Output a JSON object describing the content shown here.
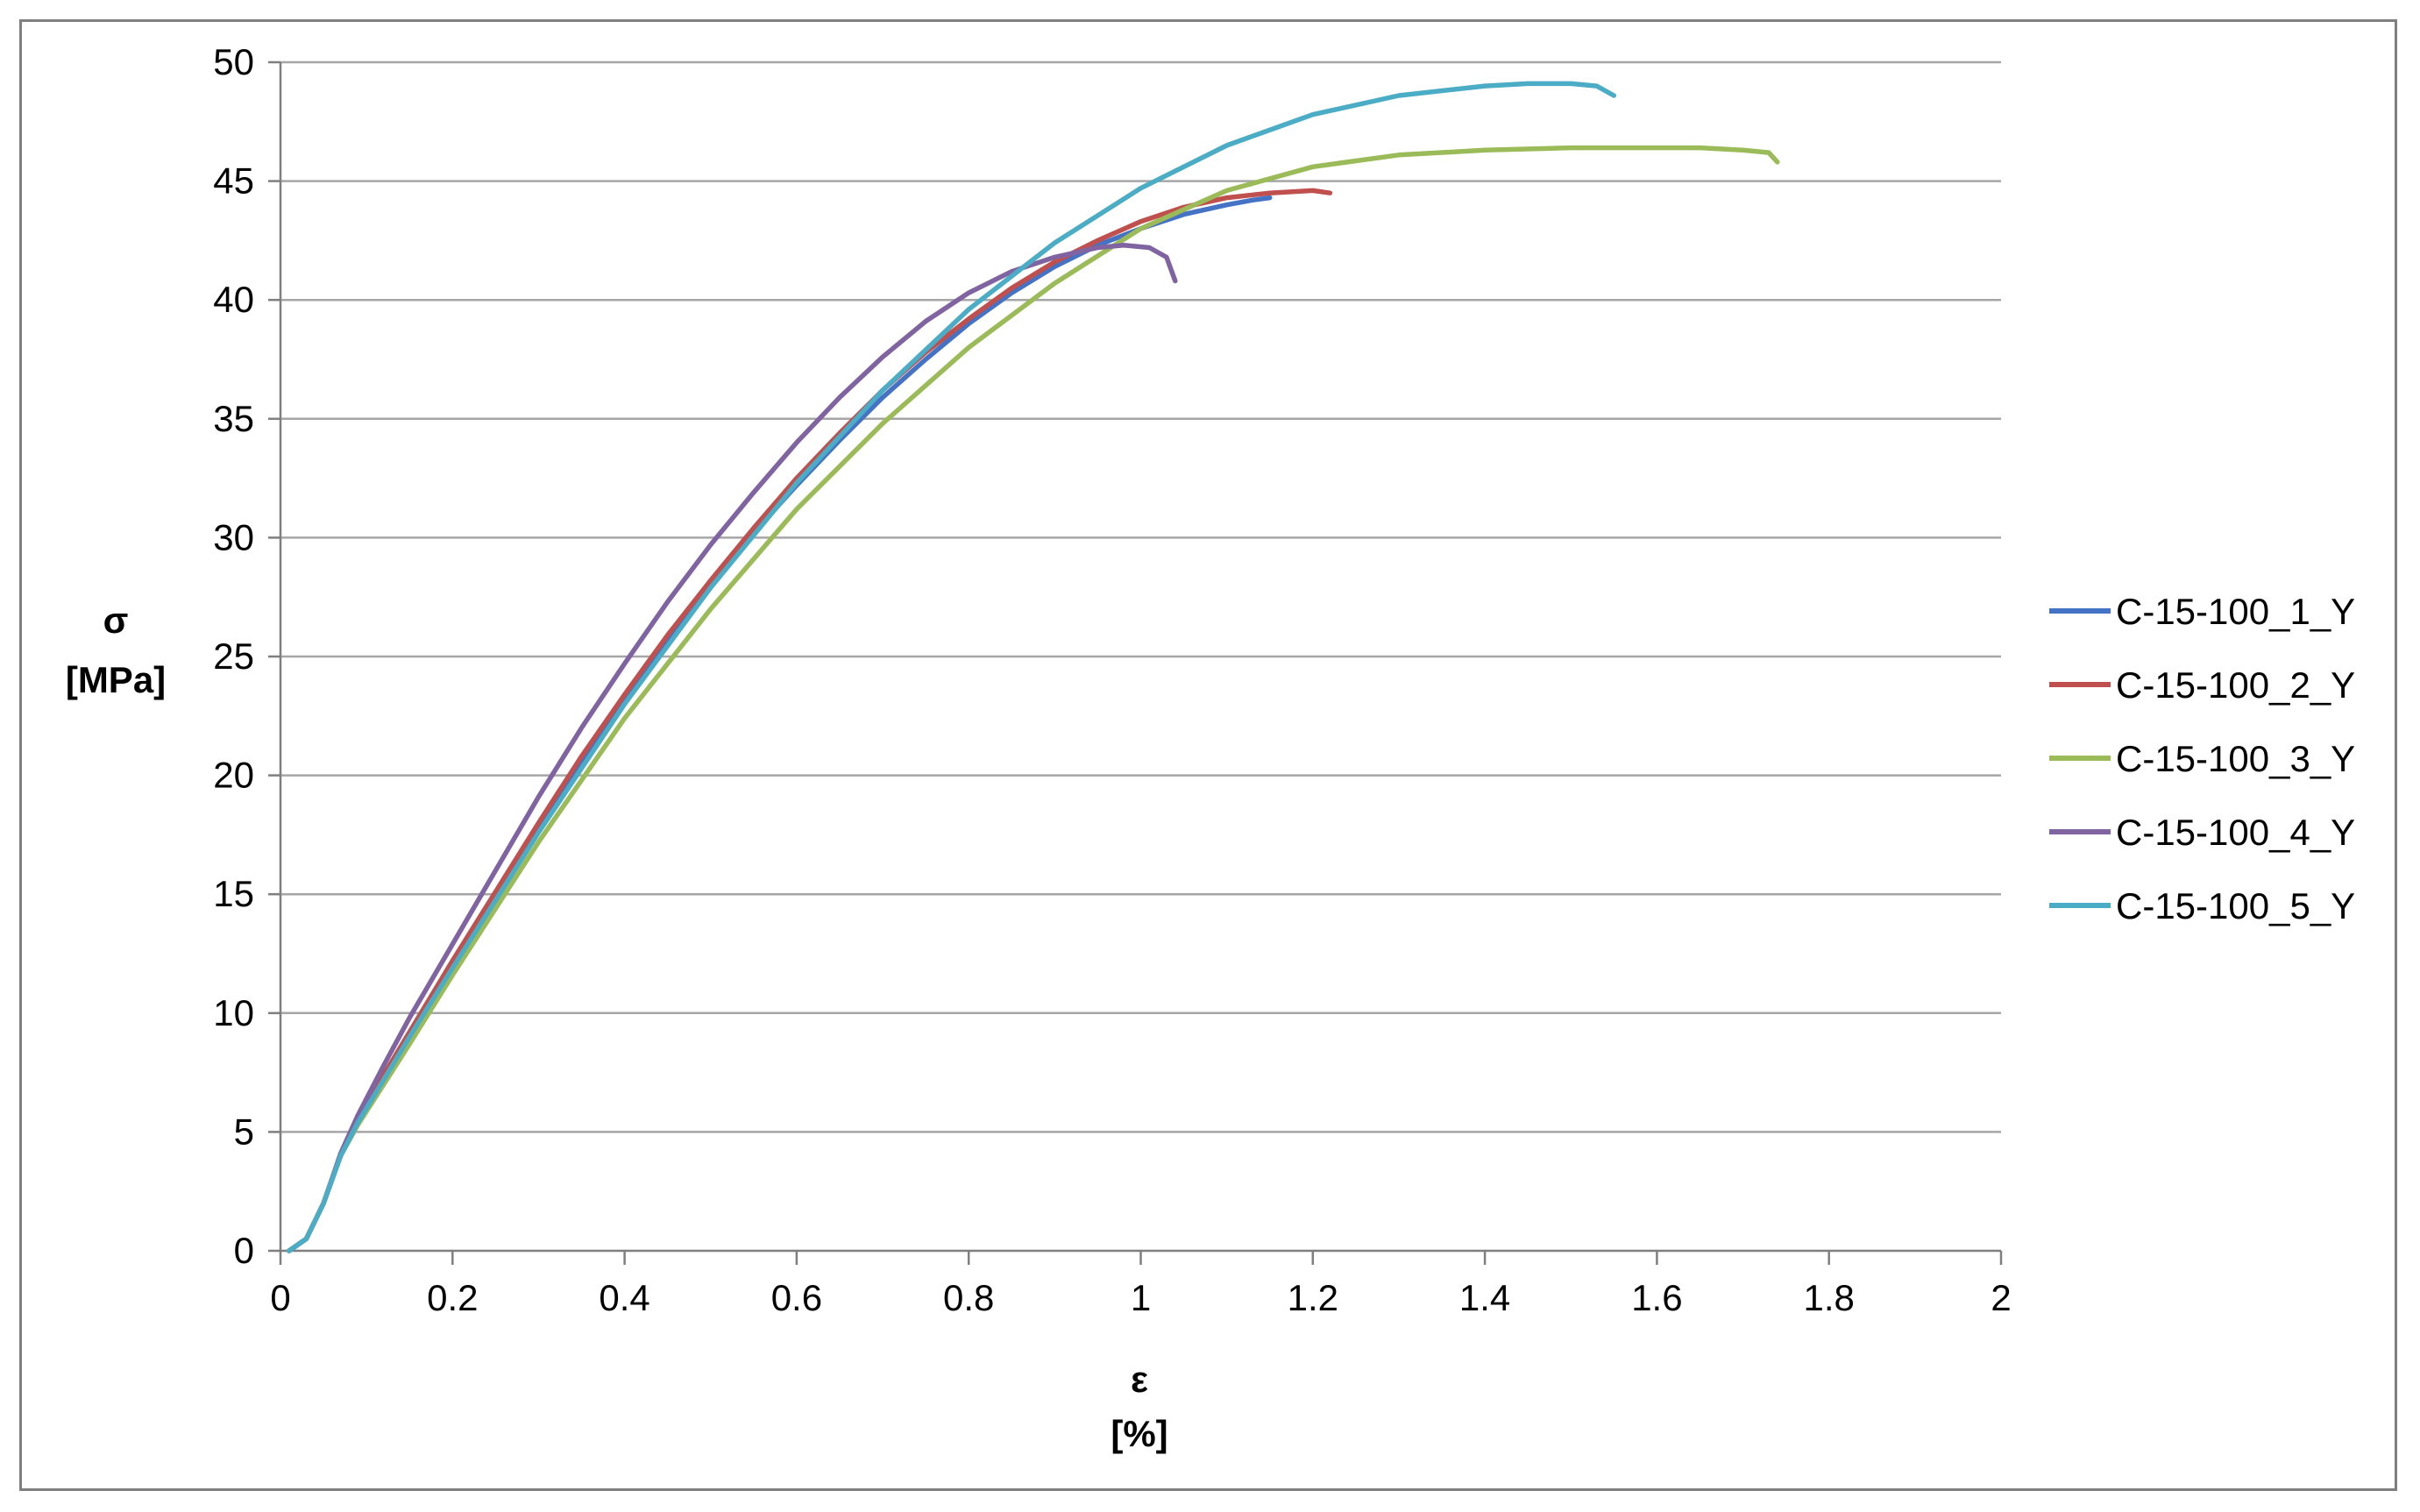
{
  "chart_data": {
    "type": "line",
    "title": "",
    "xlabel": "ε",
    "xunit": "[%]",
    "ylabel": "σ",
    "yunit": "[MPa]",
    "xlim": [
      0,
      2
    ],
    "ylim": [
      0,
      50
    ],
    "x_ticks": [
      "0",
      "0.2",
      "0.4",
      "0.6",
      "0.8",
      "1",
      "1.2",
      "1.4",
      "1.6",
      "1.8",
      "2"
    ],
    "y_ticks": [
      "0",
      "5",
      "10",
      "15",
      "20",
      "25",
      "30",
      "35",
      "40",
      "45",
      "50"
    ],
    "grid": "horizontal",
    "legend_position": "right",
    "series": [
      {
        "name": "C-15-100_1_Y",
        "color": "#4472C4",
        "x": [
          0.01,
          0.03,
          0.05,
          0.07,
          0.09,
          0.12,
          0.15,
          0.2,
          0.25,
          0.3,
          0.35,
          0.4,
          0.45,
          0.5,
          0.55,
          0.6,
          0.65,
          0.7,
          0.75,
          0.8,
          0.85,
          0.9,
          0.95,
          1.0,
          1.05,
          1.1,
          1.13,
          1.15
        ],
        "y": [
          0.0,
          0.5,
          2.0,
          4.0,
          5.5,
          7.3,
          9.0,
          12.0,
          14.9,
          17.8,
          20.6,
          23.2,
          25.7,
          28.0,
          30.2,
          32.2,
          34.1,
          35.9,
          37.5,
          39.0,
          40.3,
          41.4,
          42.3,
          43.0,
          43.6,
          44.0,
          44.2,
          44.3
        ]
      },
      {
        "name": "C-15-100_2_Y",
        "color": "#C0504D",
        "x": [
          0.01,
          0.03,
          0.05,
          0.07,
          0.09,
          0.12,
          0.15,
          0.2,
          0.25,
          0.3,
          0.35,
          0.4,
          0.45,
          0.5,
          0.55,
          0.6,
          0.65,
          0.7,
          0.75,
          0.8,
          0.85,
          0.9,
          0.95,
          1.0,
          1.05,
          1.1,
          1.15,
          1.2,
          1.22
        ],
        "y": [
          0.0,
          0.5,
          2.0,
          4.0,
          5.5,
          7.4,
          9.2,
          12.2,
          15.1,
          18.0,
          20.8,
          23.4,
          25.9,
          28.2,
          30.4,
          32.5,
          34.4,
          36.2,
          37.8,
          39.2,
          40.5,
          41.6,
          42.5,
          43.3,
          43.9,
          44.3,
          44.5,
          44.6,
          44.5
        ]
      },
      {
        "name": "C-15-100_3_Y",
        "color": "#9BBB59",
        "x": [
          0.01,
          0.03,
          0.05,
          0.07,
          0.09,
          0.12,
          0.15,
          0.2,
          0.3,
          0.4,
          0.5,
          0.6,
          0.7,
          0.8,
          0.9,
          1.0,
          1.1,
          1.2,
          1.3,
          1.4,
          1.5,
          1.6,
          1.65,
          1.7,
          1.73,
          1.74
        ],
        "y": [
          0.0,
          0.5,
          2.0,
          4.0,
          5.3,
          7.0,
          8.7,
          11.6,
          17.2,
          22.4,
          27.0,
          31.2,
          34.8,
          38.0,
          40.7,
          43.0,
          44.6,
          45.6,
          46.1,
          46.3,
          46.4,
          46.4,
          46.4,
          46.3,
          46.2,
          45.8
        ]
      },
      {
        "name": "C-15-100_4_Y",
        "color": "#8064A2",
        "x": [
          0.01,
          0.03,
          0.05,
          0.07,
          0.09,
          0.12,
          0.15,
          0.2,
          0.25,
          0.3,
          0.35,
          0.4,
          0.45,
          0.5,
          0.55,
          0.6,
          0.65,
          0.7,
          0.75,
          0.8,
          0.85,
          0.9,
          0.95,
          0.98,
          1.01,
          1.03,
          1.04
        ],
        "y": [
          0.0,
          0.5,
          2.0,
          4.1,
          5.7,
          7.8,
          9.8,
          12.9,
          16.0,
          19.1,
          22.0,
          24.7,
          27.3,
          29.7,
          31.9,
          34.0,
          35.9,
          37.6,
          39.1,
          40.3,
          41.2,
          41.8,
          42.2,
          42.3,
          42.2,
          41.8,
          40.8
        ]
      },
      {
        "name": "C-15-100_5_Y",
        "color": "#4BACC6",
        "x": [
          0.01,
          0.03,
          0.05,
          0.07,
          0.09,
          0.12,
          0.15,
          0.2,
          0.3,
          0.4,
          0.5,
          0.6,
          0.7,
          0.8,
          0.9,
          1.0,
          1.1,
          1.2,
          1.3,
          1.4,
          1.45,
          1.5,
          1.53,
          1.55
        ],
        "y": [
          0.0,
          0.5,
          2.0,
          4.0,
          5.4,
          7.2,
          9.0,
          11.9,
          17.6,
          23.0,
          27.9,
          32.3,
          36.2,
          39.6,
          42.4,
          44.7,
          46.5,
          47.8,
          48.6,
          49.0,
          49.1,
          49.1,
          49.0,
          48.6
        ]
      }
    ]
  }
}
